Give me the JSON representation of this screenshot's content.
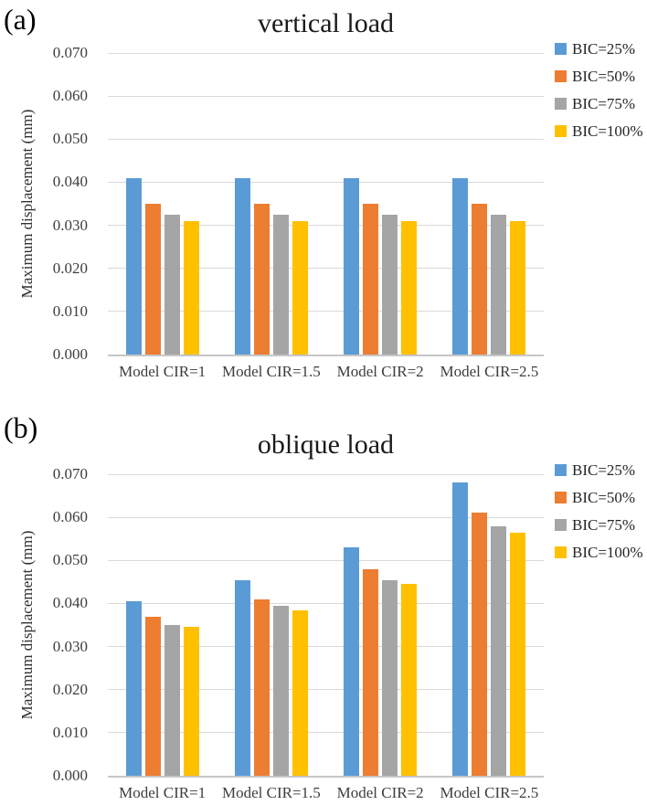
{
  "chart_data": [
    {
      "panel_label": "(a)",
      "type": "bar",
      "title": "vertical load",
      "xlabel": "",
      "ylabel": "Maximum displacement (mm)",
      "categories": [
        "Model CIR=1",
        "Model CIR=1.5",
        "Model CIR=2",
        "Model CIR=2.5"
      ],
      "series": [
        {
          "name": "BIC=25%",
          "color": "#5B9BD5",
          "values": [
            0.041,
            0.041,
            0.041,
            0.041
          ]
        },
        {
          "name": "BIC=50%",
          "color": "#ED7D31",
          "values": [
            0.035,
            0.035,
            0.035,
            0.035
          ]
        },
        {
          "name": "BIC=75%",
          "color": "#A5A5A5",
          "values": [
            0.0325,
            0.0325,
            0.0325,
            0.0325
          ]
        },
        {
          "name": "BIC=100%",
          "color": "#FFC000",
          "values": [
            0.031,
            0.031,
            0.031,
            0.031
          ]
        }
      ],
      "ylim": [
        0,
        0.07
      ],
      "ytick_step": 0.01,
      "ytick_decimals": 3,
      "grid": true,
      "legend_position": "right"
    },
    {
      "panel_label": "(b)",
      "type": "bar",
      "title": "oblique load",
      "xlabel": "",
      "ylabel": "Maximum displacement (mm)",
      "categories": [
        "Model CIR=1",
        "Model CIR=1.5",
        "Model CIR=2",
        "Model CIR=2.5"
      ],
      "series": [
        {
          "name": "BIC=25%",
          "color": "#5B9BD5",
          "values": [
            0.0405,
            0.0455,
            0.053,
            0.068
          ]
        },
        {
          "name": "BIC=50%",
          "color": "#ED7D31",
          "values": [
            0.037,
            0.041,
            0.048,
            0.061
          ]
        },
        {
          "name": "BIC=75%",
          "color": "#A5A5A5",
          "values": [
            0.035,
            0.0395,
            0.0455,
            0.058
          ]
        },
        {
          "name": "BIC=100%",
          "color": "#FFC000",
          "values": [
            0.0345,
            0.0385,
            0.0445,
            0.0565
          ]
        }
      ],
      "ylim": [
        0,
        0.07
      ],
      "ytick_step": 0.01,
      "ytick_decimals": 3,
      "grid": true,
      "legend_position": "right"
    }
  ]
}
